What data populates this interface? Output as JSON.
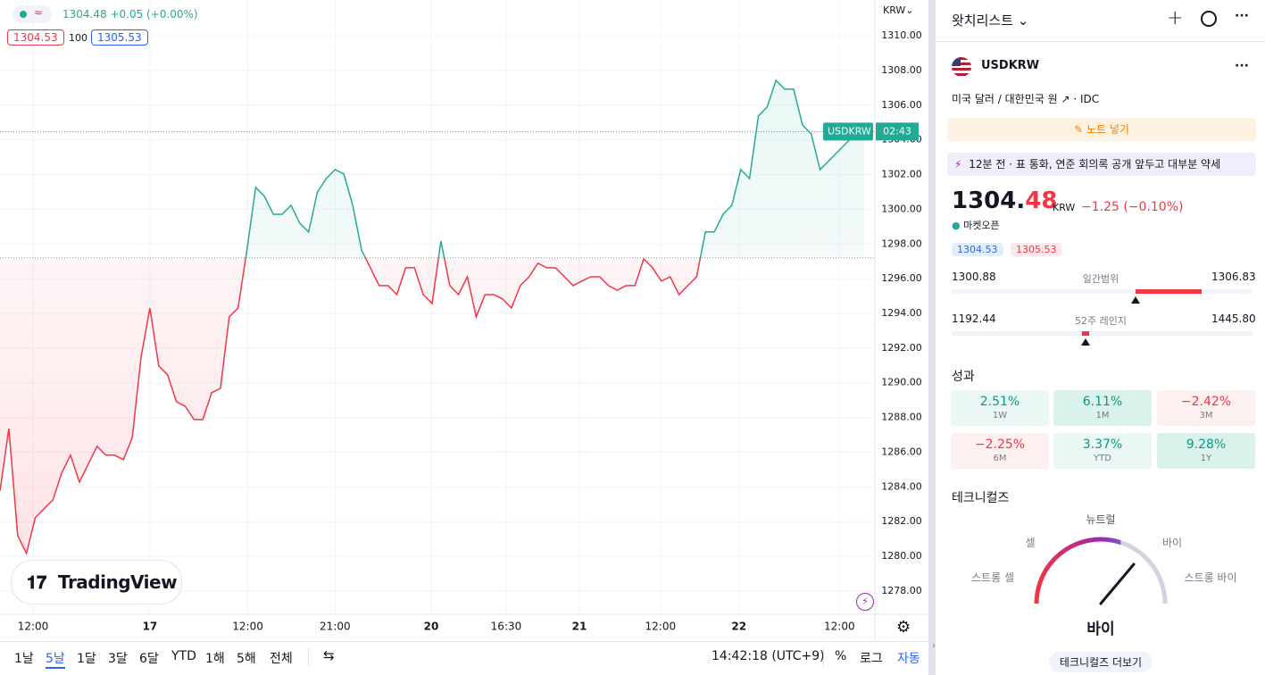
{
  "chart_header": {
    "price": "1304.48",
    "change": "+0.05 (+0.00%)",
    "bid": "1304.53",
    "spread": "100",
    "ask": "1305.53",
    "logo": "TradingView"
  },
  "chart_data": {
    "type": "line",
    "currency": "KRW",
    "up_color": "#22ab94",
    "down_color": "#f23645",
    "baseline": 1297.2,
    "last_value": 1304.48,
    "last_label": "USDKRW",
    "countdown": "02:43",
    "xlim": [
      0,
      98
    ],
    "ylim": [
      1276.66,
      1312.06
    ],
    "grid": true,
    "xticks": [
      {
        "value": 3.75,
        "label": "12:00"
      },
      {
        "value": 17.0,
        "label": "17"
      },
      {
        "value": 28.1,
        "label": "12:00"
      },
      {
        "value": 38.0,
        "label": "21:00"
      },
      {
        "value": 48.9,
        "label": "20"
      },
      {
        "value": 57.4,
        "label": "16:30"
      },
      {
        "value": 65.7,
        "label": "21"
      },
      {
        "value": 74.9,
        "label": "12:00"
      },
      {
        "value": 83.8,
        "label": "22"
      },
      {
        "value": 95.2,
        "label": "12:00"
      }
    ],
    "yticks": [
      {
        "value": 1278,
        "label": "1278.00"
      },
      {
        "value": 1280,
        "label": "1280.00"
      },
      {
        "value": 1282,
        "label": "1282.00"
      },
      {
        "value": 1284,
        "label": "1284.00"
      },
      {
        "value": 1286,
        "label": "1286.00"
      },
      {
        "value": 1288,
        "label": "1288.00"
      },
      {
        "value": 1290,
        "label": "1290.00"
      },
      {
        "value": 1292,
        "label": "1292.00"
      },
      {
        "value": 1294,
        "label": "1294.00"
      },
      {
        "value": 1296,
        "label": "1296.00"
      },
      {
        "value": 1298,
        "label": "1298.00"
      },
      {
        "value": 1300,
        "label": "1300.00"
      },
      {
        "value": 1302,
        "label": "1302.00"
      },
      {
        "value": 1304,
        "label": "1304.00"
      },
      {
        "value": 1306,
        "label": "1306.00"
      },
      {
        "value": 1308,
        "label": "1308.00"
      },
      {
        "value": 1310,
        "label": "1310.00"
      }
    ],
    "values": [
      1283.77,
      1287.37,
      1281.2,
      1280.17,
      1282.22,
      1282.74,
      1283.25,
      1284.8,
      1285.83,
      1284.28,
      1285.31,
      1286.34,
      1285.83,
      1285.83,
      1285.57,
      1286.85,
      1291.48,
      1294.31,
      1290.97,
      1290.46,
      1288.91,
      1288.65,
      1287.88,
      1287.88,
      1289.43,
      1289.68,
      1293.8,
      1294.31,
      1297.66,
      1301.26,
      1300.74,
      1299.71,
      1299.71,
      1300.23,
      1299.2,
      1298.69,
      1301.0,
      1301.77,
      1302.29,
      1302.03,
      1300.23,
      1297.66,
      1296.63,
      1295.6,
      1295.6,
      1295.08,
      1296.63,
      1296.63,
      1295.08,
      1294.57,
      1298.17,
      1295.6,
      1295.08,
      1296.11,
      1293.8,
      1295.08,
      1295.08,
      1294.83,
      1294.31,
      1295.6,
      1296.11,
      1296.89,
      1296.63,
      1296.63,
      1296.11,
      1295.6,
      1295.86,
      1296.11,
      1296.11,
      1295.6,
      1295.34,
      1295.6,
      1295.6,
      1297.14,
      1296.63,
      1295.86,
      1296.11,
      1295.08,
      1295.6,
      1296.11,
      1298.69,
      1298.69,
      1299.71,
      1300.23,
      1302.29,
      1301.77,
      1305.37,
      1305.89,
      1307.43,
      1306.92,
      1306.92,
      1304.86,
      1304.34,
      1302.29,
      1302.8,
      1303.32,
      1303.83,
      1304.34,
      1304.45
    ]
  },
  "toolbar": {
    "ranges": [
      "1날",
      "5날",
      "1달",
      "3달",
      "6달",
      "YTD",
      "1해",
      "5해",
      "전체"
    ],
    "active": 1,
    "time": "14:42:18 (UTC+9)",
    "percent": "%",
    "log": "로그",
    "auto": "자동"
  },
  "watchlist": {
    "title": "왓치리스트"
  },
  "symbol": {
    "ticker": "USDKRW",
    "description": "미국 달러 / 대한민국 원",
    "source": "IDC",
    "note_button": "노트 넣기",
    "news": {
      "time": "12분 전",
      "text": "표 통화, 연준 회의록 공개 앞두고 대부분 약세"
    },
    "price_int": "1304.",
    "price_dec": "48",
    "currency": "KRW",
    "change": "−1.25 (−0.10%)",
    "status": "마켓오픈",
    "bid": "1304.53",
    "ask": "1305.53",
    "ranges": [
      {
        "low": "1300.88",
        "label": "일간범위",
        "high": "1306.83"
      },
      {
        "low": "1192.44",
        "label": "52주 레인지",
        "high": "1445.80"
      }
    ]
  },
  "performance": {
    "title": "성과",
    "items": [
      {
        "value": "2.51%",
        "period": "1W"
      },
      {
        "value": "6.11%",
        "period": "1M"
      },
      {
        "value": "−2.42%",
        "period": "3M"
      },
      {
        "value": "−2.25%",
        "period": "6M"
      },
      {
        "value": "3.37%",
        "period": "YTD"
      },
      {
        "value": "9.28%",
        "period": "1Y"
      }
    ]
  },
  "technicals": {
    "title": "테크니컬즈",
    "labels": [
      "스트롱 셀",
      "셀",
      "뉴트럴",
      "바이",
      "스트롱 바이"
    ],
    "result": "바이",
    "more": "테크니컬즈 더보기"
  }
}
